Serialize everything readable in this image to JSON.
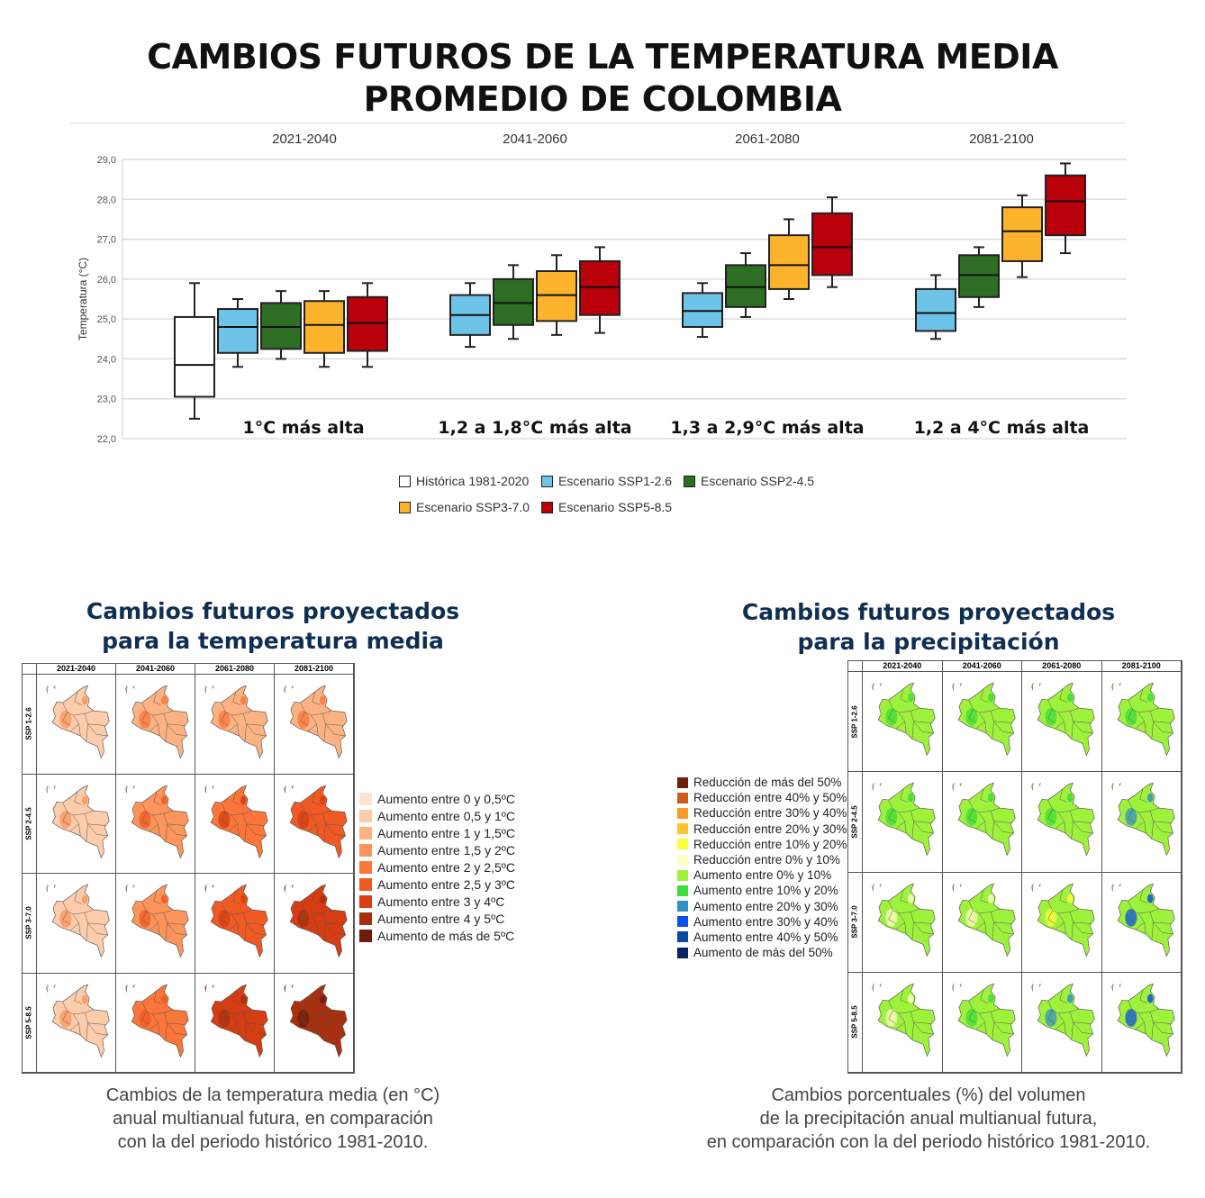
{
  "title": {
    "line1": "CAMBIOS FUTUROS DE LA TEMPERATURA MEDIA",
    "line2": "PROMEDIO DE COLOMBIA"
  },
  "chart_data": {
    "type": "box",
    "ylabel": "Temperatura (°C)",
    "ylim": [
      22,
      29
    ],
    "yticks": [
      "22,0",
      "23,0",
      "24,0",
      "25,0",
      "26,0",
      "27,0",
      "28,0",
      "29,0"
    ],
    "grid": true,
    "series": [
      {
        "name": "Histórica 1981-2020",
        "color": "#ffffff"
      },
      {
        "name": "Escenario SSP1-2.6",
        "color": "#6ec4e8"
      },
      {
        "name": "Escenario SSP2-4.5",
        "color": "#2e6e24"
      },
      {
        "name": "Escenario SSP3-7.0",
        "color": "#fdb32b"
      },
      {
        "name": "Escenario SSP5-8.5",
        "color": "#ba000a"
      }
    ],
    "groups": [
      {
        "period": "2021-2040",
        "annotation": "1°C más alta",
        "boxes": [
          {
            "series": 0,
            "min": 22.5,
            "q1": 23.05,
            "median": 23.85,
            "q3": 25.05,
            "max": 25.9
          },
          {
            "series": 1,
            "min": 23.8,
            "q1": 24.15,
            "median": 24.8,
            "q3": 25.25,
            "max": 25.5
          },
          {
            "series": 2,
            "min": 24.0,
            "q1": 24.25,
            "median": 24.8,
            "q3": 25.4,
            "max": 25.7
          },
          {
            "series": 3,
            "min": 23.8,
            "q1": 24.15,
            "median": 24.85,
            "q3": 25.45,
            "max": 25.7
          },
          {
            "series": 4,
            "min": 23.8,
            "q1": 24.2,
            "median": 24.9,
            "q3": 25.55,
            "max": 25.9
          }
        ]
      },
      {
        "period": "2041-2060",
        "annotation": "1,2 a 1,8°C más alta",
        "boxes": [
          {
            "series": 1,
            "min": 24.3,
            "q1": 24.6,
            "median": 25.1,
            "q3": 25.6,
            "max": 25.9
          },
          {
            "series": 2,
            "min": 24.5,
            "q1": 24.85,
            "median": 25.4,
            "q3": 26.0,
            "max": 26.35
          },
          {
            "series": 3,
            "min": 24.6,
            "q1": 24.95,
            "median": 25.6,
            "q3": 26.2,
            "max": 26.6
          },
          {
            "series": 4,
            "min": 24.65,
            "q1": 25.1,
            "median": 25.8,
            "q3": 26.45,
            "max": 26.8
          }
        ]
      },
      {
        "period": "2061-2080",
        "annotation": "1,3 a 2,9°C más alta",
        "boxes": [
          {
            "series": 1,
            "min": 24.55,
            "q1": 24.8,
            "median": 25.2,
            "q3": 25.65,
            "max": 25.9
          },
          {
            "series": 2,
            "min": 25.05,
            "q1": 25.3,
            "median": 25.8,
            "q3": 26.35,
            "max": 26.65
          },
          {
            "series": 3,
            "min": 25.5,
            "q1": 25.75,
            "median": 26.35,
            "q3": 27.1,
            "max": 27.5
          },
          {
            "series": 4,
            "min": 25.8,
            "q1": 26.1,
            "median": 26.8,
            "q3": 27.65,
            "max": 28.05
          }
        ]
      },
      {
        "period": "2081-2100",
        "annotation": "1,2 a 4°C más alta",
        "boxes": [
          {
            "series": 1,
            "min": 24.5,
            "q1": 24.7,
            "median": 25.15,
            "q3": 25.75,
            "max": 26.1
          },
          {
            "series": 2,
            "min": 25.3,
            "q1": 25.55,
            "median": 26.1,
            "q3": 26.6,
            "max": 26.8
          },
          {
            "series": 3,
            "min": 26.05,
            "q1": 26.45,
            "median": 27.2,
            "q3": 27.8,
            "max": 28.1
          },
          {
            "series": 4,
            "min": 26.65,
            "q1": 27.1,
            "median": 27.95,
            "q3": 28.6,
            "max": 28.9
          }
        ]
      }
    ]
  },
  "maps": {
    "periods": [
      "2021-2040",
      "2041-2060",
      "2061-2080",
      "2081-2100"
    ],
    "scenarios": [
      "SSP 1-2.6",
      "SSP 2-4.5",
      "SSP 3-7.0",
      "SSP 5-8.5"
    ],
    "temperature": {
      "heading1": "Cambios futuros proyectados",
      "heading2": "para la temperatura media",
      "caption": [
        "Cambios de la temperatura media (en °C)",
        "anual multianual futura, en comparación",
        "con la del periodo histórico 1981-2010."
      ],
      "legend": [
        {
          "label": "Aumento entre 0 y 0,5ºC",
          "color": "#fde3d2"
        },
        {
          "label": "Aumento entre 0,5 y 1ºC",
          "color": "#fdccaa"
        },
        {
          "label": "Aumento entre 1 y 1,5ºC",
          "color": "#fcb282"
        },
        {
          "label": "Aumento entre 1,5 y 2ºC",
          "color": "#fc945b"
        },
        {
          "label": "Aumento entre 2 y 2,5ºC",
          "color": "#fb7638"
        },
        {
          "label": "Aumento entre 2,5 y 3ºC",
          "color": "#f05a22"
        },
        {
          "label": "Aumento entre 3 y 4ºC",
          "color": "#d63d12"
        },
        {
          "label": "Aumento entre 4 y 5ºC",
          "color": "#a8300e"
        },
        {
          "label": "Aumento de más de 5ºC",
          "color": "#6e1c0b"
        }
      ],
      "dominant": [
        [
          1,
          2,
          2,
          2
        ],
        [
          1,
          3,
          4,
          5
        ],
        [
          1,
          3,
          5,
          6
        ],
        [
          1,
          4,
          6,
          7
        ]
      ],
      "accent": [
        [
          3,
          4,
          4,
          4
        ],
        [
          3,
          5,
          6,
          6
        ],
        [
          3,
          5,
          6,
          7
        ],
        [
          3,
          5,
          7,
          8
        ]
      ]
    },
    "precipitation": {
      "heading1": "Cambios futuros proyectados",
      "heading2": "para la precipitación",
      "caption": [
        "Cambios porcentuales (%) del volumen",
        "de la precipitación anual multianual futura,",
        "en comparación con la del periodo histórico 1981-2010."
      ],
      "legend": [
        {
          "label": "Reducción de más del 50%",
          "color": "#6e200c"
        },
        {
          "label": "Reducción entre 40% y 50%",
          "color": "#cd5a20"
        },
        {
          "label": "Reducción entre 30% y 40%",
          "color": "#fb9a29"
        },
        {
          "label": "Reducción entre 20% y 30%",
          "color": "#fec42e"
        },
        {
          "label": "Reducción entre 10% y 20%",
          "color": "#fefe3a"
        },
        {
          "label": "Reducción entre 0% y 10%",
          "color": "#fefec4"
        },
        {
          "label": "Aumento entre 0% y 10%",
          "color": "#9ef23c"
        },
        {
          "label": "Aumento entre 10% y 20%",
          "color": "#3fdc3a"
        },
        {
          "label": "Aumento entre 20% y 30%",
          "color": "#3390c4"
        },
        {
          "label": "Aumento entre 30% y 40%",
          "color": "#0a50e6"
        },
        {
          "label": "Aumento entre 40% y 50%",
          "color": "#0b4aa0"
        },
        {
          "label": "Aumento de más del 50%",
          "color": "#082466"
        }
      ],
      "dominant": [
        [
          6,
          6,
          6,
          6
        ],
        [
          6,
          6,
          6,
          6
        ],
        [
          6,
          6,
          6,
          6
        ],
        [
          6,
          6,
          6,
          6
        ]
      ],
      "accent": [
        [
          7,
          7,
          7,
          7
        ],
        [
          7,
          7,
          7,
          8
        ],
        [
          5,
          5,
          4,
          9
        ],
        [
          5,
          7,
          8,
          9
        ]
      ]
    }
  }
}
